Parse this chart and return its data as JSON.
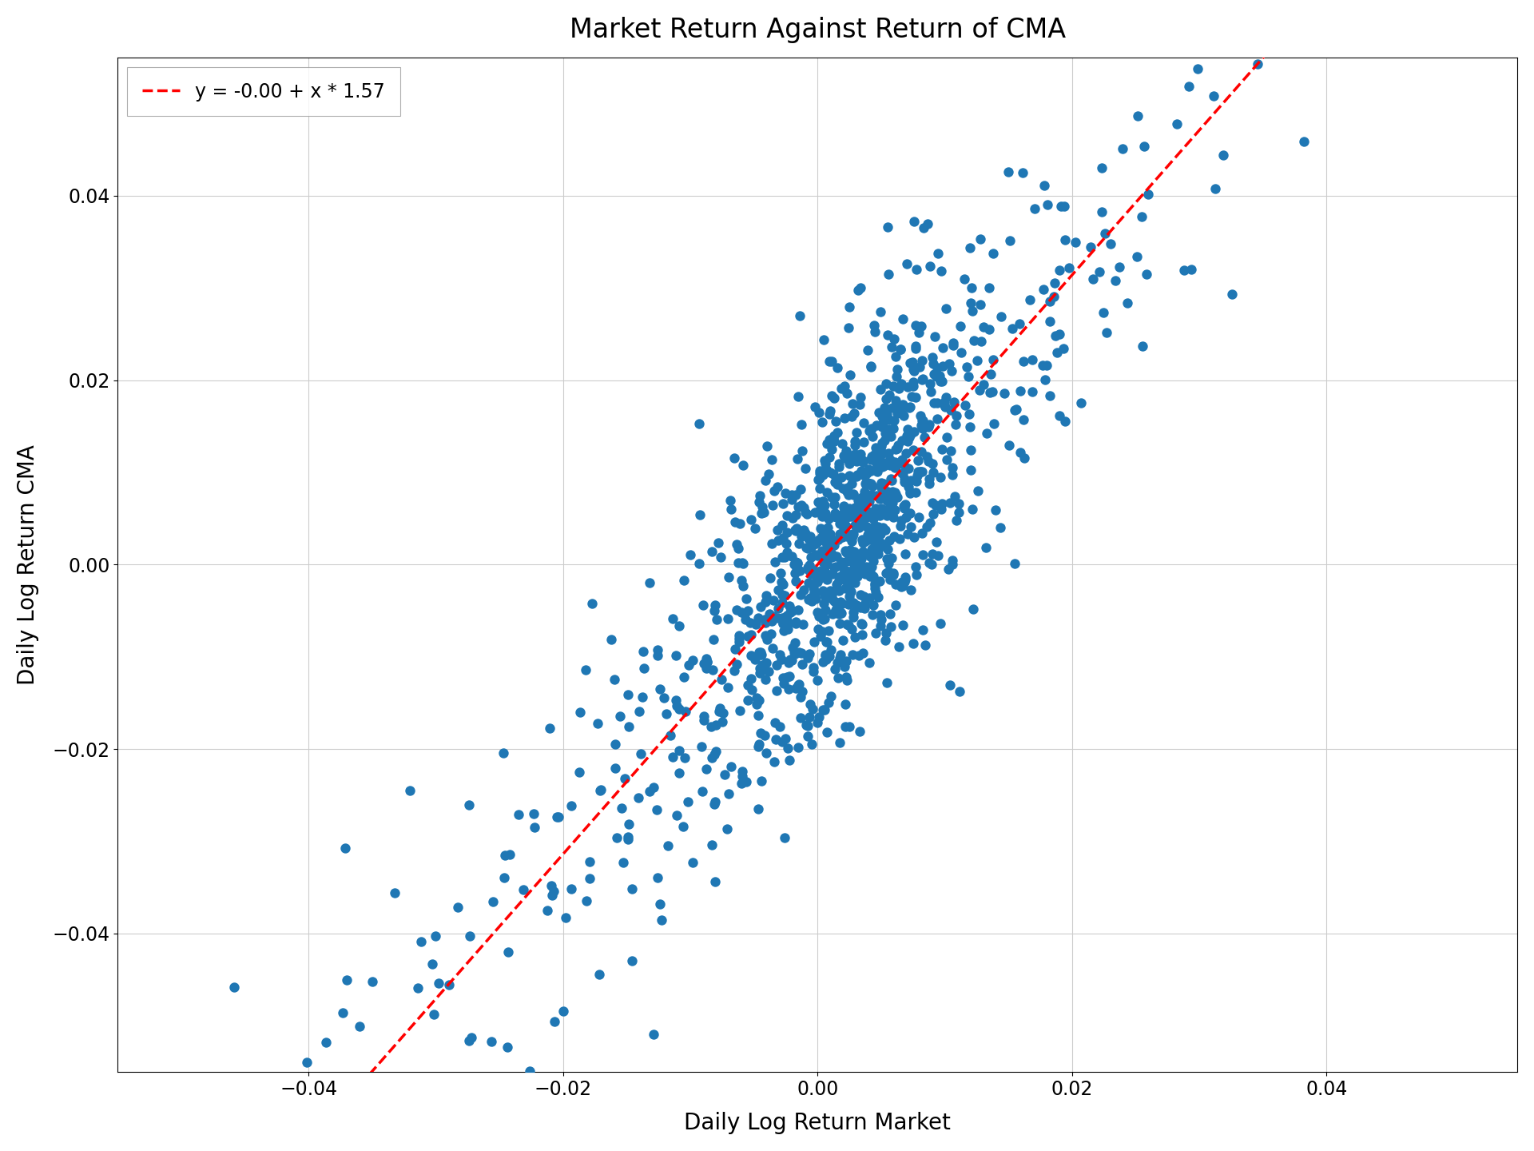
{
  "title": "Market Return Against Return of CMA",
  "xlabel": "Daily Log Return Market",
  "ylabel": "Daily Log Return CMA",
  "intercept": -0.0,
  "slope": 1.57,
  "legend_label": "y = -0.00 + x * 1.57",
  "dot_color": "#1f77b4",
  "line_color": "red",
  "xlim": [
    -0.055,
    0.055
  ],
  "ylim": [
    -0.055,
    0.055
  ],
  "xticks": [
    -0.04,
    -0.02,
    0.0,
    0.02,
    0.04
  ],
  "yticks": [
    -0.04,
    -0.02,
    0.0,
    0.02,
    0.04
  ],
  "n_points": 1200,
  "seed": 7,
  "marker_size": 80,
  "alpha": 1.0,
  "title_fontsize": 24,
  "label_fontsize": 20,
  "tick_fontsize": 17,
  "legend_fontsize": 17
}
